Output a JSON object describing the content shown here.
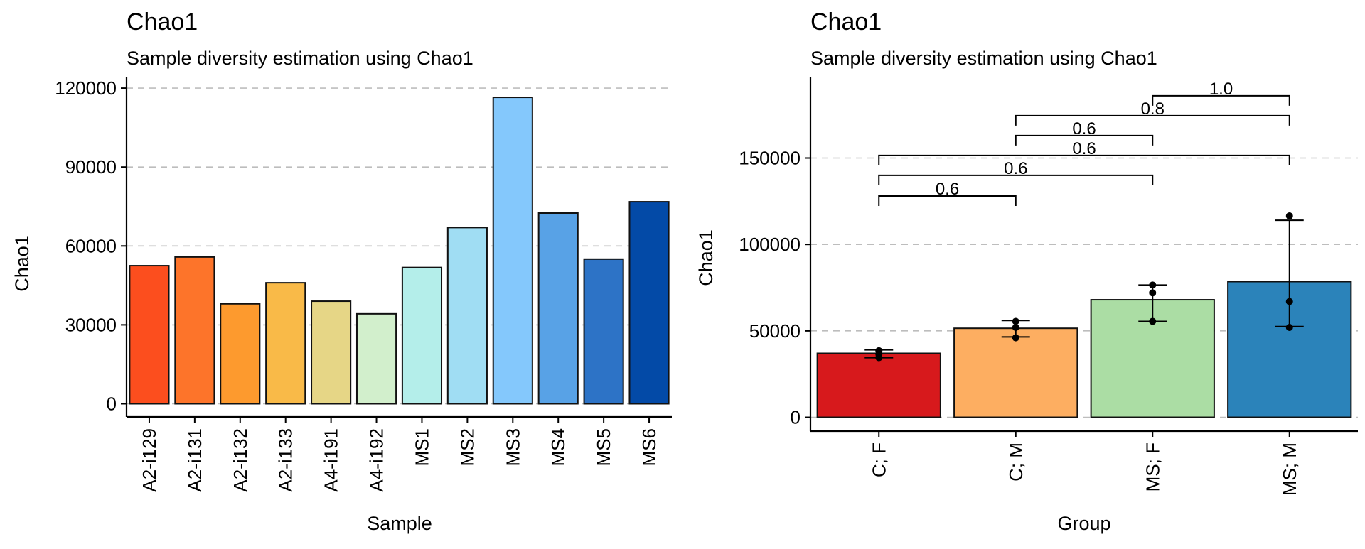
{
  "chart_data": [
    {
      "type": "bar",
      "title": "Chao1",
      "subtitle": "Sample diversity estimation using Chao1",
      "xlabel": "Sample",
      "ylabel": "Chao1",
      "ylim": [
        -5000,
        123000
      ],
      "yticks": [
        0,
        30000,
        60000,
        90000,
        120000
      ],
      "grid": "horizontal dashed",
      "categories": [
        "A2-i129",
        "A2-i131",
        "A2-i132",
        "A2-i133",
        "A4-i191",
        "A4-i192",
        "MS1",
        "MS2",
        "MS3",
        "MS4",
        "MS5",
        "MS6"
      ],
      "values": [
        52500,
        55800,
        38000,
        46000,
        39000,
        34200,
        51800,
        67000,
        116500,
        72500,
        55000,
        76800
      ],
      "colors": [
        "#FC4E1E",
        "#FD742A",
        "#FD9A2E",
        "#F9BA48",
        "#E6D686",
        "#D2EFCC",
        "#B4EEEA",
        "#A0DDF3",
        "#84C8FC",
        "#58A2E6",
        "#2D73C6",
        "#034AA7"
      ]
    },
    {
      "type": "bar",
      "title": "Chao1",
      "subtitle": "Sample diversity estimation using Chao1",
      "xlabel": "Group",
      "ylabel": "Chao1",
      "ylim": [
        -8000,
        195000
      ],
      "yticks": [
        0,
        50000,
        100000,
        150000
      ],
      "grid": "horizontal dashed",
      "categories": [
        "C; F",
        "C; M",
        "MS; F",
        "MS; M"
      ],
      "values": [
        37000,
        51500,
        68000,
        78500
      ],
      "error_low": [
        34500,
        46500,
        55500,
        52500
      ],
      "error_high": [
        39000,
        56000,
        76500,
        114000
      ],
      "points": [
        [
          34500,
          36500,
          38500
        ],
        [
          46000,
          52000,
          55500
        ],
        [
          55500,
          72000,
          76500
        ],
        [
          52000,
          67000,
          116500
        ]
      ],
      "colors": [
        "#D7191C",
        "#FDAE61",
        "#ABDDA4",
        "#2B83BA"
      ],
      "comparisons": [
        {
          "from": 0,
          "to": 1,
          "level": 128000,
          "label": "0.6"
        },
        {
          "from": 0,
          "to": 2,
          "level": 140000,
          "label": "0.6"
        },
        {
          "from": 0,
          "to": 3,
          "level": 151500,
          "label": "0.6"
        },
        {
          "from": 1,
          "to": 2,
          "level": 163000,
          "label": "0.6"
        },
        {
          "from": 1,
          "to": 3,
          "level": 174500,
          "label": "0.8"
        },
        {
          "from": 2,
          "to": 3,
          "level": 186000,
          "label": "1.0"
        }
      ]
    }
  ]
}
